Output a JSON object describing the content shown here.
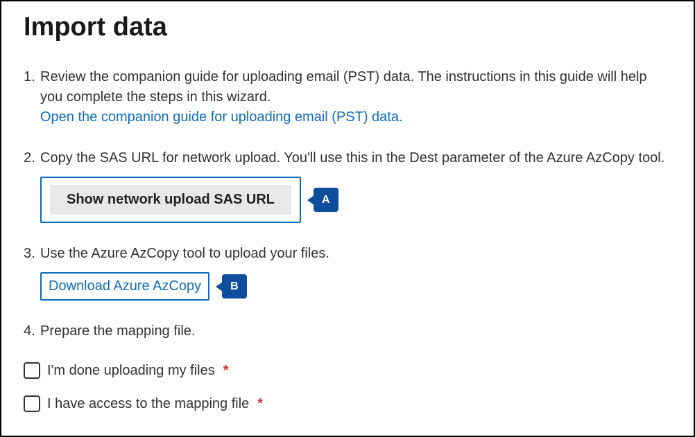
{
  "title": "Import data",
  "colors": {
    "link": "#0f6cbd",
    "callout_bg": "#0f4e9c",
    "callout_text": "#ffffff",
    "button_bg": "#e8e8e8",
    "required": "#d13438",
    "border": "#000000"
  },
  "steps": {
    "s1": {
      "text": "Review the companion guide for uploading email (PST) data. The instructions in this guide will help you complete the steps in this wizard.",
      "link_label": "Open the companion guide for uploading email (PST) data."
    },
    "s2": {
      "text": "Copy the SAS URL for network upload. You'll use this in the Dest parameter of the Azure AzCopy tool.",
      "button_label": "Show network upload SAS URL",
      "callout": "A"
    },
    "s3": {
      "text": "Use the Azure AzCopy tool to upload your files.",
      "button_label": "Download Azure AzCopy",
      "callout": "B"
    },
    "s4": {
      "text": "Prepare the mapping file."
    }
  },
  "checks": {
    "c1": {
      "label": "I'm done uploading my files",
      "required_mark": "*"
    },
    "c2": {
      "label": "I have access to the mapping file",
      "required_mark": "*"
    }
  }
}
